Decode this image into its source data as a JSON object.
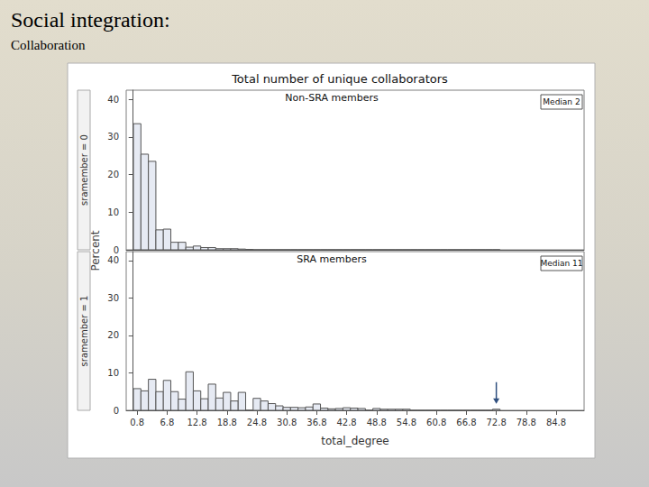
{
  "page": {
    "title": "Social integration:",
    "subtitle": "Collaboration"
  },
  "chart_data": {
    "type": "histogram",
    "title": "Total number of unique collaborators",
    "x_label": "total_degree",
    "y_label": "Percent",
    "color": "#e6eaf3",
    "bins": [
      0.05,
      1.55,
      3.05,
      4.55,
      6.05,
      7.55,
      9.05,
      10.55,
      12.05,
      13.55,
      15.05,
      16.55,
      18.05,
      19.55,
      21.05,
      22.55,
      24.05,
      25.55,
      27.05,
      28.55,
      30.05,
      31.55,
      33.05,
      34.55,
      36.05,
      37.55,
      39.05,
      40.55,
      42.05,
      43.55,
      45.05,
      46.55,
      48.05,
      49.55,
      51.05,
      52.55,
      54.05,
      55.55,
      57.05,
      58.55,
      60.05,
      61.55,
      63.05,
      64.55,
      66.05,
      67.55,
      69.05,
      70.55,
      72.05,
      73.55
    ],
    "xlim": [
      -1.4,
      90.4
    ],
    "xticks": [
      0.8,
      6.8,
      12.8,
      18.8,
      24.8,
      30.8,
      36.8,
      42.8,
      48.8,
      54.8,
      60.8,
      66.8,
      72.8,
      78.8,
      84.8
    ],
    "ylim": [
      0,
      42.4
    ],
    "yticks": [
      0,
      10,
      20,
      30,
      40
    ],
    "series": [
      {
        "name": "Non-SRA members",
        "row_label": "sramember = 0",
        "annotation": "Median 2",
        "values": [
          33.5,
          25.4,
          23.5,
          5.3,
          5.5,
          2.0,
          2.0,
          0.7,
          1.0,
          0.6,
          0.6,
          0.3,
          0.3,
          0.3,
          0.2,
          0.1,
          0,
          0,
          0,
          0,
          0,
          0,
          0,
          0,
          0,
          0,
          0,
          0,
          0,
          0,
          0,
          0,
          0,
          0,
          0,
          0,
          0,
          0,
          0,
          0,
          0,
          0,
          0,
          0,
          0,
          0,
          0,
          0,
          0
        ]
      },
      {
        "name": "SRA members",
        "row_label": "sramember = 1",
        "annotation": "Median 11",
        "arrow_at": 72.8,
        "values": [
          5.8,
          5.2,
          8.3,
          5.0,
          8.0,
          5.0,
          3.0,
          10.3,
          5.2,
          3.1,
          7.0,
          3.3,
          4.8,
          2.5,
          4.8,
          0,
          3.2,
          2.5,
          1.8,
          1.2,
          0.8,
          0.8,
          0.7,
          0.9,
          1.7,
          0.6,
          0.4,
          0.5,
          0.7,
          0.6,
          0.5,
          0,
          0.5,
          0.3,
          0.3,
          0.3,
          0.3,
          0,
          0,
          0,
          0,
          0,
          0,
          0,
          0,
          0,
          0,
          0,
          0.3
        ]
      }
    ]
  }
}
